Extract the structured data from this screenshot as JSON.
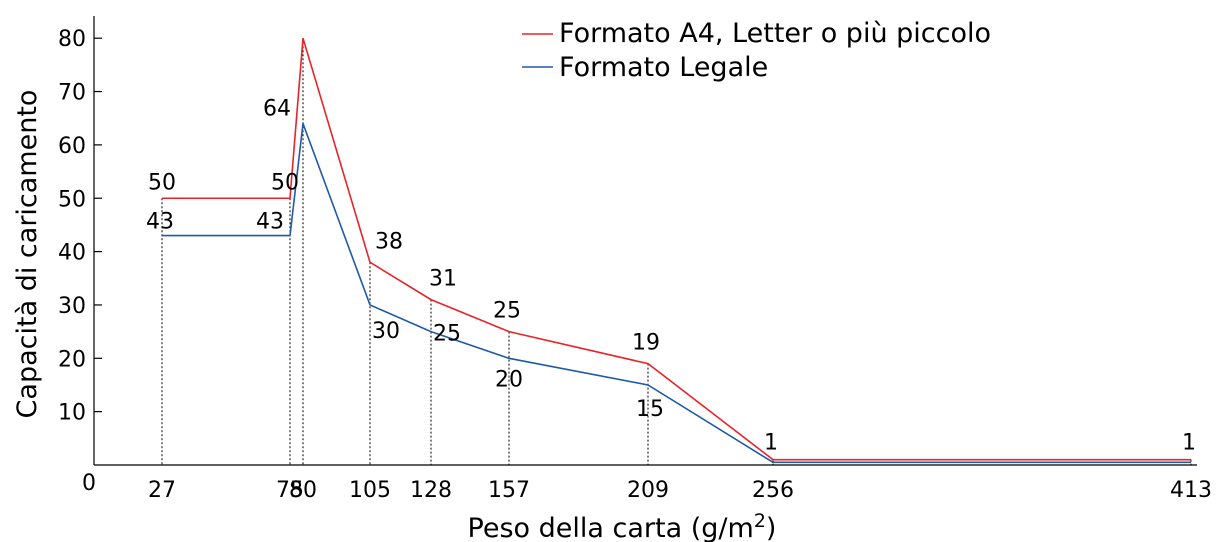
{
  "chart_data": {
    "type": "line",
    "xlabel_main": "Peso della carta (g/m",
    "xlabel_sup": "2",
    "xlabel_tail": ")",
    "ylabel": "Capacità di caricamento",
    "origin_label": "0",
    "x_ticks": [
      "27",
      "75",
      "80",
      "105",
      "128",
      "157",
      "209",
      "256",
      "413"
    ],
    "y_ticks": [
      "10",
      "20",
      "30",
      "40",
      "50",
      "60",
      "70",
      "80"
    ],
    "ylim": [
      0,
      80
    ],
    "grid": false,
    "legend_position": "top-right",
    "series": [
      {
        "name": "Formato A4, Letter o più piccolo",
        "color": "#e8232a",
        "values": [
          50,
          50,
          80,
          38,
          31,
          25,
          19,
          1,
          1
        ],
        "labels": [
          "50",
          "50",
          "80",
          "38",
          "31",
          "25",
          "19",
          "1",
          "1"
        ]
      },
      {
        "name": "Formato Legale",
        "color": "#1f5aa8",
        "values": [
          43,
          43,
          64,
          30,
          25,
          20,
          15,
          0.5,
          0.5
        ],
        "labels": [
          "43",
          "43",
          "64",
          "30",
          "25",
          "20",
          "15",
          "",
          ""
        ]
      }
    ]
  }
}
